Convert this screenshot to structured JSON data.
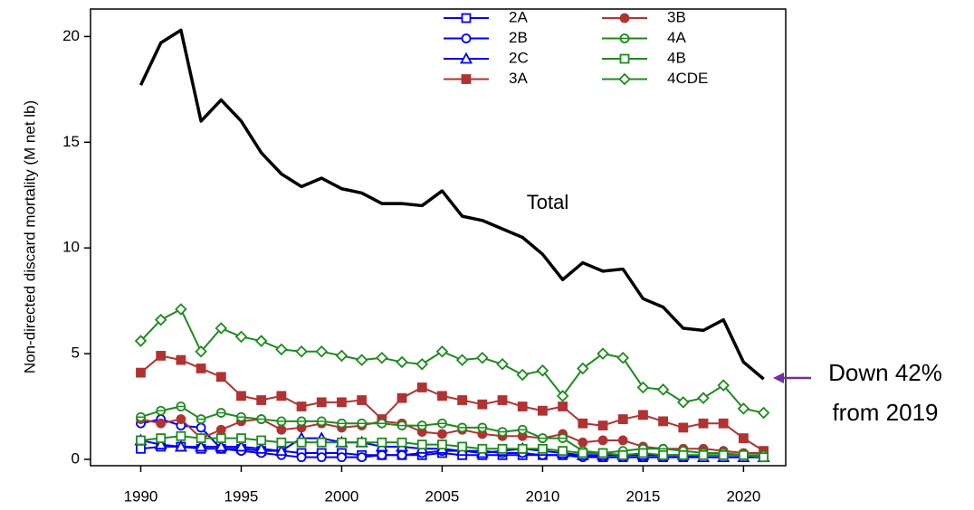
{
  "chart_data": {
    "type": "line",
    "ylabel": "Non-directed discard mortality (M net lb)",
    "x": [
      1990,
      1991,
      1992,
      1993,
      1994,
      1995,
      1996,
      1997,
      1998,
      1999,
      2000,
      2001,
      2002,
      2003,
      2004,
      2005,
      2006,
      2007,
      2008,
      2009,
      2010,
      2011,
      2012,
      2013,
      2014,
      2015,
      2016,
      2017,
      2018,
      2019,
      2020,
      2021
    ],
    "xlim": [
      1987.5,
      2022.1
    ],
    "xticks": [
      1990,
      1995,
      2000,
      2005,
      2010,
      2015,
      2020
    ],
    "ylim": [
      -0.3,
      21.3
    ],
    "yticks": [
      0,
      5,
      10,
      15,
      20
    ],
    "total": {
      "label": "Total",
      "color": "#000000",
      "values": [
        17.7,
        19.7,
        20.3,
        16.0,
        17.0,
        16.0,
        14.5,
        13.5,
        12.9,
        13.3,
        12.8,
        12.6,
        12.1,
        12.1,
        12.0,
        12.7,
        11.5,
        11.3,
        10.9,
        10.5,
        9.7,
        8.5,
        9.3,
        8.9,
        9.0,
        7.6,
        7.2,
        6.2,
        6.1,
        6.6,
        4.6,
        3.8
      ]
    },
    "annotation": [
      "Down 42%",
      "from 2019"
    ],
    "annotation_arrow_color": "#7030a0",
    "legend": "top",
    "series": [
      {
        "name": "2A",
        "color": "#0000ee",
        "marker": "square-open",
        "values": [
          0.5,
          0.6,
          0.6,
          0.5,
          0.5,
          0.5,
          0.4,
          0.4,
          0.3,
          0.3,
          0.3,
          0.2,
          0.2,
          0.2,
          0.2,
          0.3,
          0.2,
          0.2,
          0.2,
          0.2,
          0.2,
          0.2,
          0.2,
          0.1,
          0.1,
          0.1,
          0.1,
          0.1,
          0.1,
          0.1,
          0.1,
          0.1
        ]
      },
      {
        "name": "2B",
        "color": "#0000ee",
        "marker": "circle-open",
        "values": [
          1.7,
          1.9,
          1.6,
          1.5,
          0.5,
          0.4,
          0.3,
          0.2,
          0.1,
          0.1,
          0.1,
          0.1,
          0.2,
          0.2,
          0.3,
          0.4,
          0.4,
          0.4,
          0.3,
          0.3,
          0.2,
          0.2,
          0.1,
          0.1,
          0.1,
          0.1,
          0.1,
          0.1,
          0.1,
          0.1,
          0.1,
          0.1
        ]
      },
      {
        "name": "2C",
        "color": "#0000ee",
        "marker": "triangle-open",
        "values": [
          0.9,
          0.7,
          0.6,
          0.6,
          0.6,
          0.6,
          0.5,
          0.4,
          1.0,
          1.0,
          0.8,
          0.8,
          0.6,
          0.6,
          0.5,
          0.5,
          0.4,
          0.3,
          0.4,
          0.5,
          0.4,
          0.3,
          0.2,
          0.2,
          0.2,
          0.2,
          0.2,
          0.2,
          0.1,
          0.1,
          0.1,
          0.1
        ]
      },
      {
        "name": "3A",
        "color": "#b03232",
        "marker": "square",
        "values": [
          4.1,
          4.9,
          4.7,
          4.3,
          3.9,
          3.0,
          2.8,
          3.0,
          2.5,
          2.7,
          2.7,
          2.8,
          1.9,
          2.9,
          3.4,
          3.0,
          2.8,
          2.6,
          2.8,
          2.5,
          2.3,
          2.5,
          1.7,
          1.6,
          1.9,
          2.1,
          1.8,
          1.5,
          1.7,
          1.7,
          1.0,
          0.4
        ]
      },
      {
        "name": "3B",
        "color": "#b03232",
        "marker": "circle",
        "values": [
          1.9,
          1.7,
          1.9,
          1.0,
          1.4,
          1.8,
          1.9,
          1.4,
          1.5,
          1.7,
          1.5,
          1.6,
          1.8,
          1.7,
          1.3,
          1.2,
          1.4,
          1.2,
          1.1,
          1.1,
          1.0,
          1.2,
          0.8,
          0.9,
          0.9,
          0.6,
          0.5,
          0.5,
          0.5,
          0.4,
          0.3,
          0.3
        ]
      },
      {
        "name": "4A",
        "color": "#1e8a1e",
        "marker": "circle-bar",
        "values": [
          2.0,
          2.3,
          2.5,
          1.9,
          2.2,
          2.0,
          1.9,
          1.8,
          1.8,
          1.8,
          1.7,
          1.7,
          1.7,
          1.6,
          1.6,
          1.7,
          1.5,
          1.5,
          1.3,
          1.4,
          1.0,
          1.0,
          0.4,
          0.3,
          0.4,
          0.5,
          0.5,
          0.4,
          0.3,
          0.3,
          0.2,
          0.2
        ]
      },
      {
        "name": "4B",
        "color": "#1e8a1e",
        "marker": "square-open",
        "values": [
          0.9,
          1.0,
          1.1,
          1.0,
          1.0,
          1.0,
          0.9,
          0.8,
          0.8,
          0.8,
          0.8,
          0.8,
          0.8,
          0.8,
          0.7,
          0.7,
          0.6,
          0.5,
          0.5,
          0.5,
          0.5,
          0.4,
          0.3,
          0.3,
          0.2,
          0.3,
          0.2,
          0.2,
          0.2,
          0.2,
          0.2,
          0.1
        ]
      },
      {
        "name": "4CDE",
        "color": "#1e8a1e",
        "marker": "diamond-open",
        "values": [
          5.6,
          6.6,
          7.1,
          5.1,
          6.2,
          5.8,
          5.6,
          5.2,
          5.1,
          5.1,
          4.9,
          4.7,
          4.8,
          4.6,
          4.5,
          5.1,
          4.7,
          4.8,
          4.5,
          4.0,
          4.2,
          3.0,
          4.3,
          5.0,
          4.8,
          3.4,
          3.3,
          2.7,
          2.9,
          3.5,
          2.4,
          2.2
        ]
      }
    ]
  }
}
